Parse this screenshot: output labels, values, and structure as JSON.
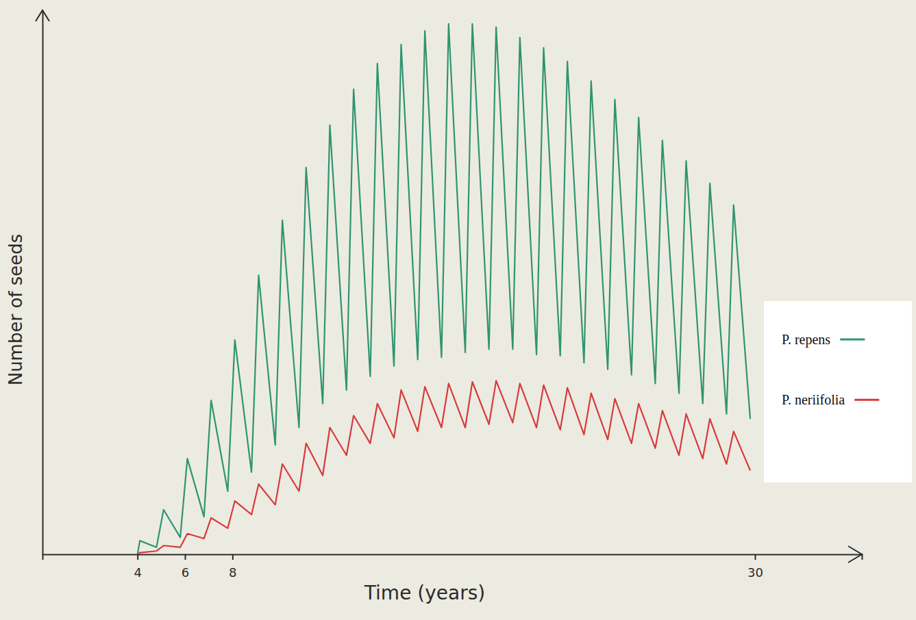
{
  "chart_data": {
    "type": "line",
    "xlabel": "Time (years)",
    "ylabel": "Number of seeds",
    "x": [
      4,
      4.1,
      4.8,
      5.1,
      5.8,
      6.1,
      6.8,
      7.1,
      7.8,
      8.1,
      8.8,
      9.1,
      9.8,
      10.1,
      10.8,
      11.1,
      11.8,
      12.1,
      12.8,
      13.1,
      13.8,
      14.1,
      14.8,
      15.1,
      15.8,
      16.1,
      16.8,
      17.1,
      17.8,
      18.1,
      18.8,
      19.1,
      19.8,
      20.1,
      20.8,
      21.1,
      21.8,
      22.1,
      22.8,
      23.1,
      23.8,
      24.1,
      24.8,
      25.1,
      25.8,
      26.1,
      26.8,
      27.1,
      27.8,
      28.1,
      28.8,
      29.1,
      29.8
    ],
    "series": [
      {
        "name": "P. repens",
        "color": "#2f9470",
        "values": [
          0,
          2.5,
          1.3,
          8.2,
          3.1,
          17.6,
          6.9,
          28.3,
          11.6,
          39.4,
          15.1,
          51.3,
          20.1,
          61.4,
          23.3,
          71.1,
          27.7,
          78.9,
          30.2,
          85.5,
          32.7,
          90.2,
          34.6,
          93.7,
          35.8,
          96.2,
          36.2,
          97.5,
          37.1,
          97.5,
          37.7,
          96.9,
          37.7,
          95.0,
          36.7,
          93.1,
          36.5,
          90.6,
          35.2,
          87.0,
          34.0,
          83.6,
          33.0,
          80.3,
          31.4,
          76.1,
          29.6,
          72.3,
          27.7,
          68.2,
          25.8,
          64.2,
          24.9
        ]
      },
      {
        "name": "P. neriifolia",
        "color": "#d83a3a",
        "values": [
          0,
          0.3,
          0.6,
          1.6,
          1.3,
          3.8,
          2.9,
          6.7,
          4.8,
          9.8,
          7.3,
          12.9,
          9.1,
          16.6,
          11.6,
          20.4,
          14.5,
          23.3,
          18.2,
          25.5,
          20.4,
          27.7,
          21.4,
          30.2,
          22.6,
          30.8,
          23.3,
          31.4,
          23.3,
          31.7,
          23.9,
          31.9,
          24.2,
          31.4,
          23.3,
          31.1,
          22.9,
          30.6,
          22.0,
          29.6,
          21.1,
          28.6,
          20.4,
          27.7,
          19.5,
          26.4,
          18.2,
          25.8,
          17.6,
          24.9,
          16.6,
          22.6,
          15.4
        ]
      }
    ],
    "xlim": [
      0,
      34.5
    ],
    "xticks": [
      4,
      6,
      8,
      30
    ],
    "ylim": [
      0,
      100
    ],
    "yticks": [],
    "tick_labels": "x",
    "grid": false,
    "legend": "right"
  }
}
